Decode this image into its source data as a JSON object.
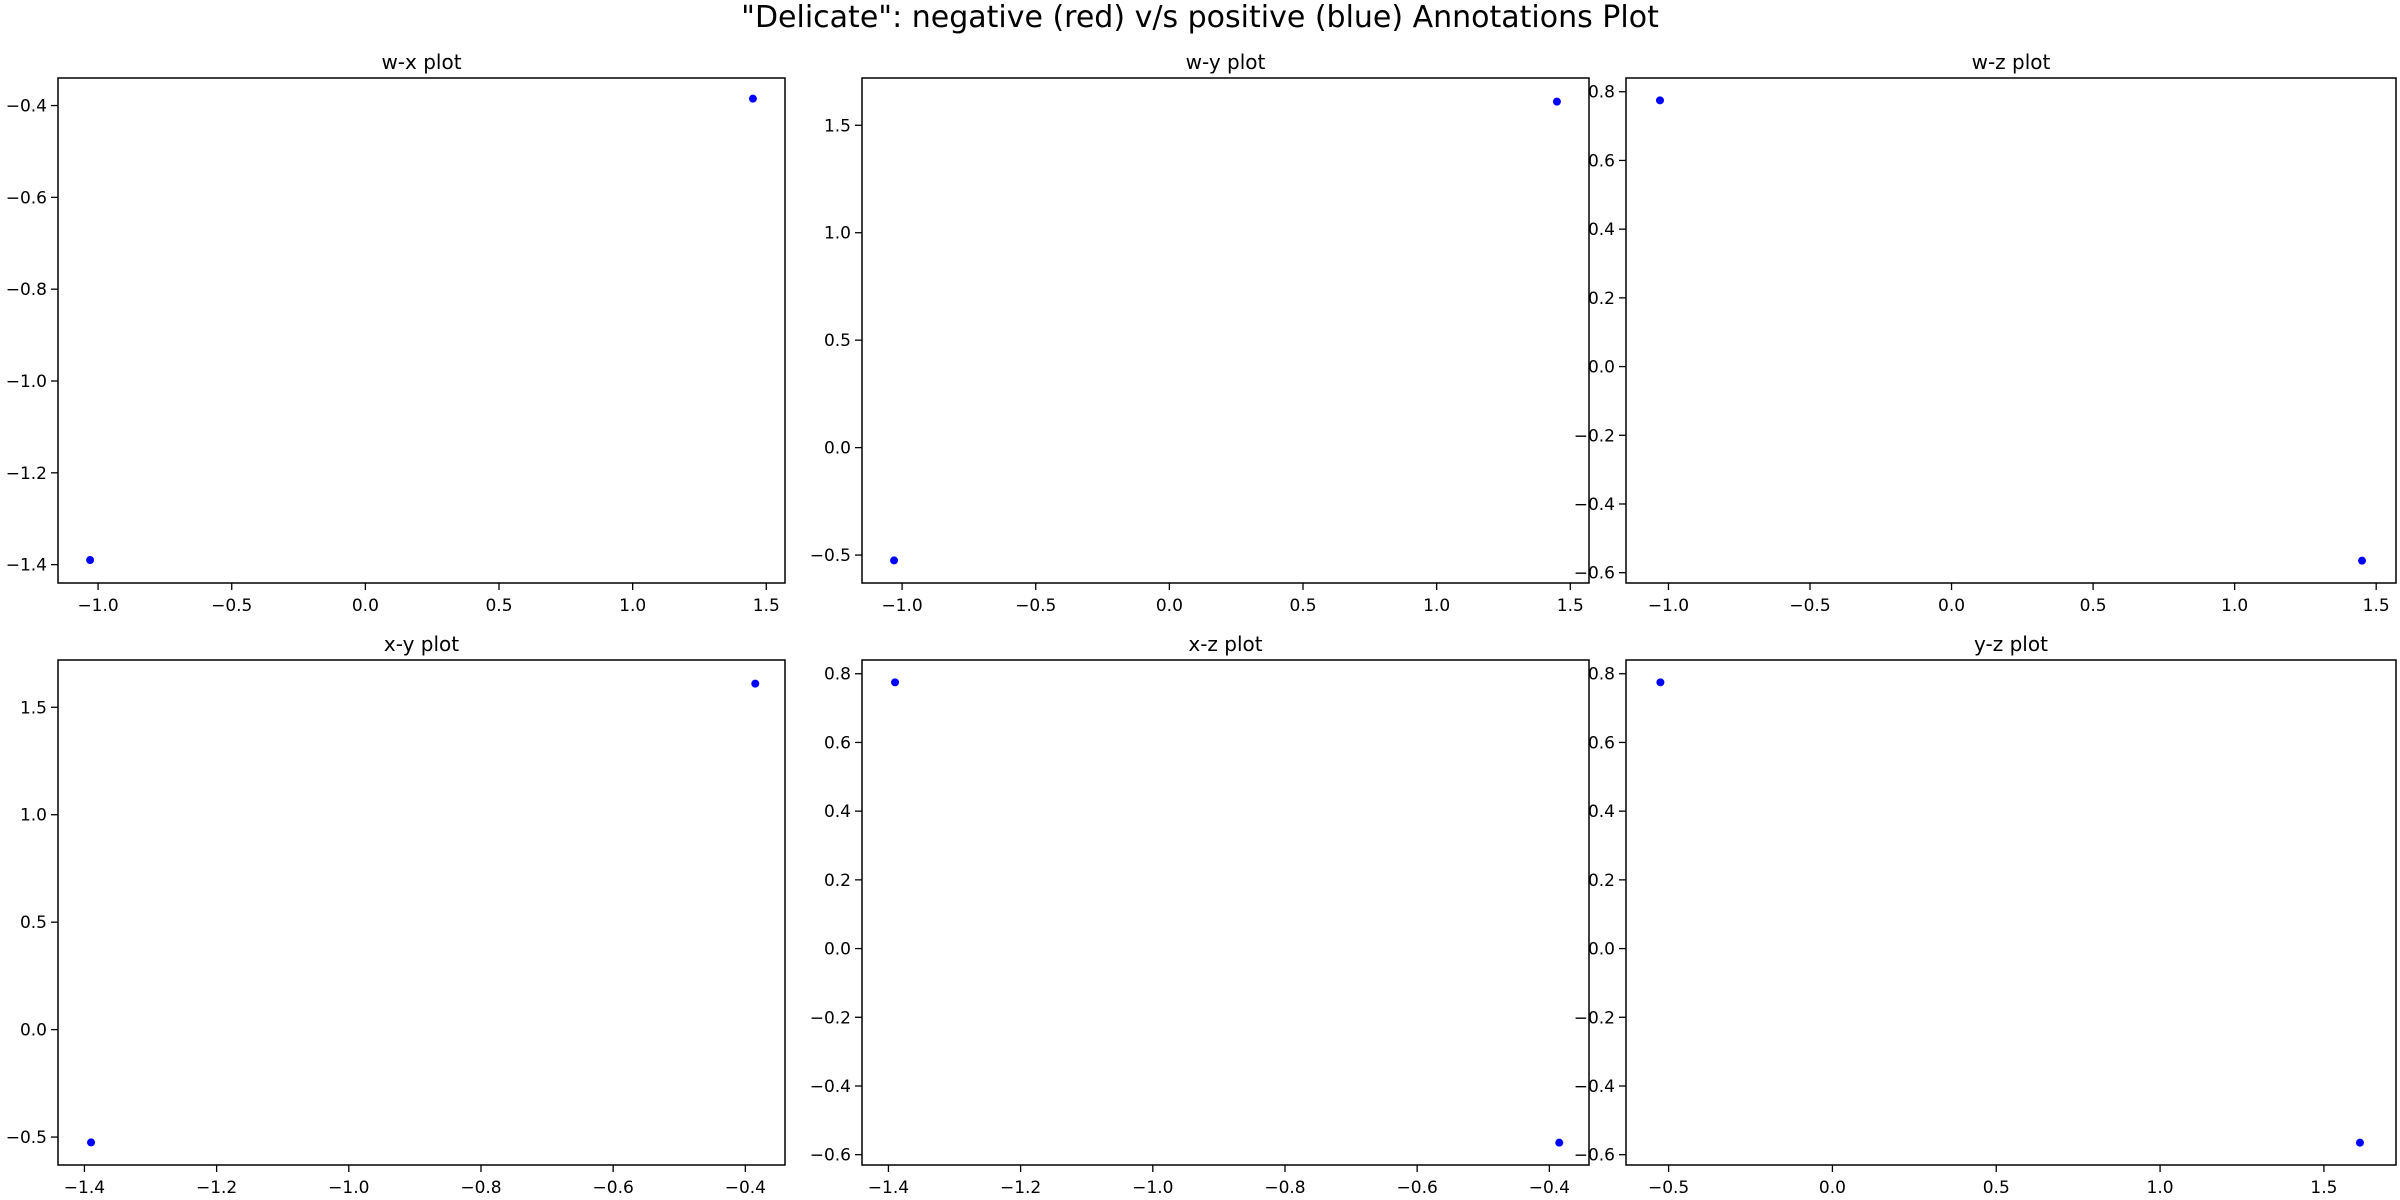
{
  "figure": {
    "title": "\"Delicate\": negative (red) v/s positive (blue) Annotations Plot"
  },
  "colors": {
    "positive": "#0000ff",
    "negative": "#ff0000",
    "axis": "#000000"
  },
  "chart_data": [
    {
      "type": "scatter",
      "title": "w-x plot",
      "xlabel": "",
      "ylabel": "",
      "xlim": [
        -1.15,
        1.57
      ],
      "ylim": [
        -1.44,
        -0.34
      ],
      "xticks": [
        -1.0,
        -0.5,
        0.0,
        0.5,
        1.0,
        1.5
      ],
      "yticks": [
        -1.4,
        -1.2,
        -1.0,
        -0.8,
        -0.6,
        -0.4
      ],
      "points": [
        {
          "x": -1.03,
          "y": -1.39,
          "class": "positive"
        },
        {
          "x": 1.45,
          "y": -0.385,
          "class": "positive"
        }
      ]
    },
    {
      "type": "scatter",
      "title": "w-y plot",
      "xlabel": "",
      "ylabel": "",
      "xlim": [
        -1.15,
        1.57
      ],
      "ylim": [
        -0.63,
        1.72
      ],
      "xticks": [
        -1.0,
        -0.5,
        0.0,
        0.5,
        1.0,
        1.5
      ],
      "yticks": [
        -0.5,
        0.0,
        0.5,
        1.0,
        1.5
      ],
      "points": [
        {
          "x": -1.03,
          "y": -0.525,
          "class": "positive"
        },
        {
          "x": 1.45,
          "y": 1.61,
          "class": "positive"
        }
      ]
    },
    {
      "type": "scatter",
      "title": "w-z plot",
      "xlabel": "",
      "ylabel": "",
      "xlim": [
        -1.15,
        1.57
      ],
      "ylim": [
        -0.63,
        0.84
      ],
      "xticks": [
        -1.0,
        -0.5,
        0.0,
        0.5,
        1.0,
        1.5
      ],
      "yticks": [
        -0.6,
        -0.4,
        -0.2,
        0.0,
        0.2,
        0.4,
        0.6,
        0.8
      ],
      "points": [
        {
          "x": -1.03,
          "y": 0.775,
          "class": "positive"
        },
        {
          "x": 1.45,
          "y": -0.565,
          "class": "positive"
        }
      ]
    },
    {
      "type": "scatter",
      "title": "x-y plot",
      "xlabel": "",
      "ylabel": "",
      "xlim": [
        -1.44,
        -0.34
      ],
      "ylim": [
        -0.63,
        1.72
      ],
      "xticks": [
        -1.4,
        -1.2,
        -1.0,
        -0.8,
        -0.6,
        -0.4
      ],
      "yticks": [
        -0.5,
        0.0,
        0.5,
        1.0,
        1.5
      ],
      "points": [
        {
          "x": -1.39,
          "y": -0.525,
          "class": "positive"
        },
        {
          "x": -0.385,
          "y": 1.61,
          "class": "positive"
        }
      ]
    },
    {
      "type": "scatter",
      "title": "x-z plot",
      "xlabel": "",
      "ylabel": "",
      "xlim": [
        -1.44,
        -0.34
      ],
      "ylim": [
        -0.63,
        0.84
      ],
      "xticks": [
        -1.4,
        -1.2,
        -1.0,
        -0.8,
        -0.6,
        -0.4
      ],
      "yticks": [
        -0.6,
        -0.4,
        -0.2,
        0.0,
        0.2,
        0.4,
        0.6,
        0.8
      ],
      "points": [
        {
          "x": -1.39,
          "y": 0.775,
          "class": "positive"
        },
        {
          "x": -0.385,
          "y": -0.565,
          "class": "positive"
        }
      ]
    },
    {
      "type": "scatter",
      "title": "y-z plot",
      "xlabel": "",
      "ylabel": "",
      "xlim": [
        -0.63,
        1.72
      ],
      "ylim": [
        -0.63,
        0.84
      ],
      "xticks": [
        -0.5,
        0.0,
        0.5,
        1.0,
        1.5
      ],
      "yticks": [
        -0.6,
        -0.4,
        -0.2,
        0.0,
        0.2,
        0.4,
        0.6,
        0.8
      ],
      "points": [
        {
          "x": -0.525,
          "y": 0.775,
          "class": "positive"
        },
        {
          "x": 1.61,
          "y": -0.565,
          "class": "positive"
        }
      ]
    }
  ]
}
